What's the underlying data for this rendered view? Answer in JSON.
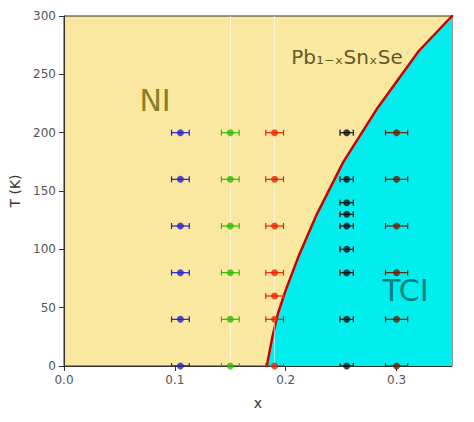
{
  "chart_data": {
    "type": "scatter",
    "xlabel": "x",
    "ylabel": "T (K)",
    "xlim": [
      0.0,
      0.35
    ],
    "ylim": [
      0,
      300
    ],
    "xticks": [
      {
        "value": 0.0,
        "label": "0.0"
      },
      {
        "value": 0.1,
        "label": "0.1"
      },
      {
        "value": 0.2,
        "label": "0.2"
      },
      {
        "value": 0.3,
        "label": "0.3"
      }
    ],
    "yticks": [
      0,
      50,
      100,
      150,
      200,
      250,
      300
    ],
    "grid": false,
    "color": "#FAE8A0",
    "vlines": [
      0.15,
      0.19
    ],
    "series": [
      {
        "type": "area",
        "color": "#00EEEE",
        "x": [
          0.183,
          0.185,
          0.188,
          0.193,
          0.2,
          0.212,
          0.228,
          0.252,
          0.282,
          0.32,
          0.35
        ],
        "values": [
          0,
          10,
          25,
          45,
          65,
          95,
          130,
          175,
          220,
          270,
          300
        ]
      },
      {
        "type": "line",
        "color": "#CC0000",
        "x": [
          0.183,
          0.185,
          0.188,
          0.193,
          0.2,
          0.212,
          0.228,
          0.252,
          0.282,
          0.32,
          0.35
        ],
        "values": [
          0,
          10,
          25,
          45,
          65,
          95,
          130,
          175,
          220,
          270,
          300
        ]
      },
      {
        "type": "scatter",
        "color": "#2222CC",
        "marker": "circle",
        "x": [
          0.105,
          0.105,
          0.105,
          0.105,
          0.105,
          0.105
        ],
        "values": [
          0,
          40,
          80,
          120,
          160,
          200
        ],
        "xerr": [
          0.008,
          0.008,
          0.008,
          0.008,
          0.008,
          0.008
        ]
      },
      {
        "type": "scatter",
        "color": "#33BB00",
        "marker": "circle",
        "x": [
          0.15,
          0.15,
          0.15,
          0.15,
          0.15,
          0.15
        ],
        "values": [
          0,
          40,
          80,
          120,
          160,
          200
        ],
        "xerr": [
          0.008,
          0.008,
          0.008,
          0.008,
          0.008,
          0.008
        ]
      },
      {
        "type": "scatter",
        "color": "#EE2200",
        "marker": "circle",
        "x": [
          0.19,
          0.19,
          0.19,
          0.19,
          0.19,
          0.19,
          0.19
        ],
        "values": [
          0,
          40,
          60,
          80,
          120,
          160,
          200
        ],
        "xerr": [
          0.008,
          0.008,
          0.008,
          0.008,
          0.008,
          0.008,
          0.008
        ]
      },
      {
        "type": "scatter",
        "color": "#111111",
        "marker": "circle",
        "x": [
          0.255,
          0.255,
          0.255,
          0.255,
          0.255,
          0.255,
          0.255,
          0.255,
          0.255
        ],
        "values": [
          0,
          40,
          80,
          100,
          120,
          130,
          140,
          160,
          200
        ],
        "xerr": [
          0.006,
          0.006,
          0.006,
          0.006,
          0.006,
          0.006,
          0.006,
          0.006,
          0.006
        ]
      },
      {
        "type": "scatter",
        "color": "#6B2000",
        "marker": "circle",
        "x": [
          0.3,
          0.3,
          0.3,
          0.3,
          0.3,
          0.3
        ],
        "values": [
          0,
          40,
          80,
          120,
          160,
          200
        ],
        "xerr": [
          0.01,
          0.01,
          0.01,
          0.01,
          0.01,
          0.01
        ]
      }
    ],
    "annotations": [
      {
        "text": "NI",
        "x": 0.068,
        "y": 228,
        "color": "#6B6000"
      },
      {
        "text": "TCI",
        "x": 0.287,
        "y": 65,
        "color": "#006060"
      },
      {
        "text": "Pb₁₋ₓSnₓSe",
        "x": 0.205,
        "y": 265,
        "color": "#3A3000"
      }
    ]
  }
}
